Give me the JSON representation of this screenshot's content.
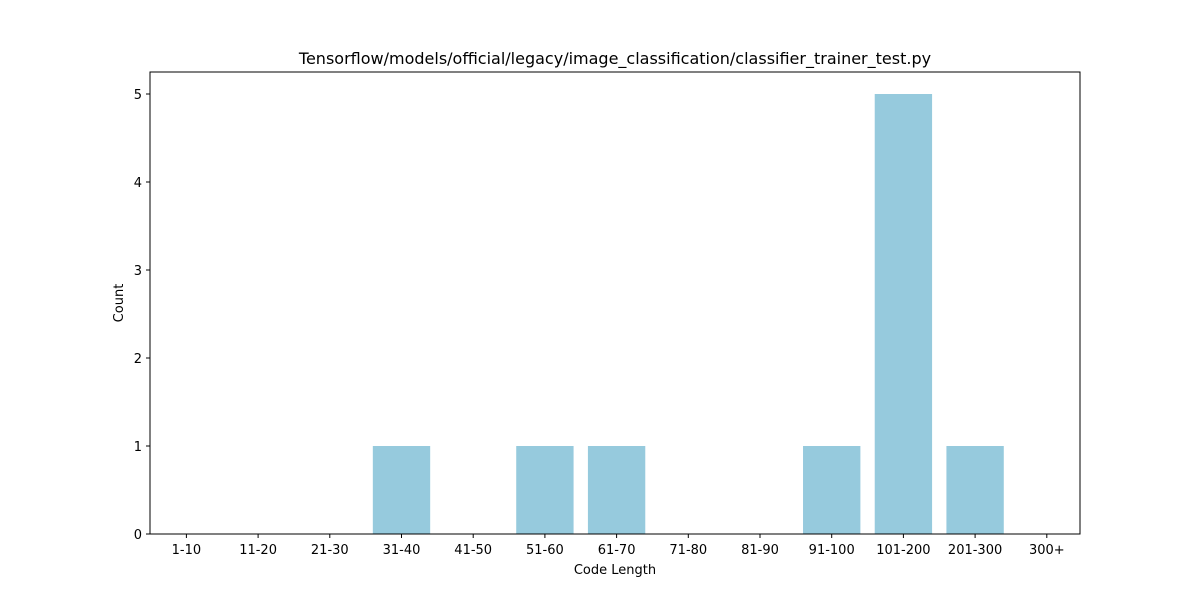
{
  "chart_data": {
    "type": "bar",
    "title": "Tensorflow/models/official/legacy/image_classification/classifier_trainer_test.py",
    "xlabel": "Code Length",
    "ylabel": "Count",
    "categories": [
      "1-10",
      "11-20",
      "21-30",
      "31-40",
      "41-50",
      "51-60",
      "61-70",
      "71-80",
      "81-90",
      "91-100",
      "101-200",
      "201-300",
      "300+"
    ],
    "values": [
      0,
      0,
      0,
      1,
      0,
      1,
      1,
      0,
      0,
      1,
      5,
      1,
      0
    ],
    "yticks": [
      0,
      1,
      2,
      3,
      4,
      5
    ],
    "ylim": [
      0,
      5.25
    ],
    "grid": false,
    "bar_color": "#96cadd"
  }
}
